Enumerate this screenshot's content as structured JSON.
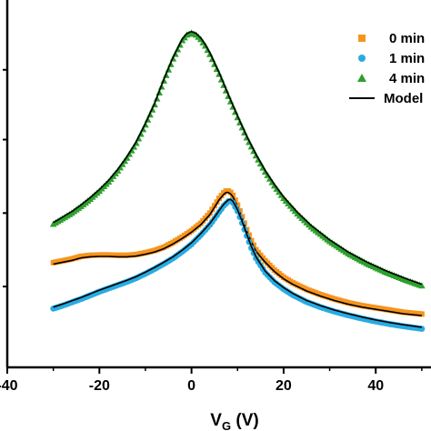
{
  "chart_data": {
    "type": "line",
    "xlabel_main": "V",
    "xlabel_sub": "G",
    "xlabel_unit": " (V)",
    "xlim": [
      -40,
      52
    ],
    "ylim": [
      0,
      1
    ],
    "x_ticks": [
      -40,
      -20,
      0,
      20,
      40
    ],
    "x_tick_labels": [
      "-40",
      "-20",
      "0",
      "20",
      "40"
    ],
    "y_tick_labels": [],
    "grid": false,
    "legend_position": "top-right",
    "series": [
      {
        "name": "0 min",
        "marker": "square",
        "color": "#f7941d",
        "x": [
          -30,
          -28,
          -26,
          -24,
          -22,
          -20,
          -18,
          -16,
          -14,
          -12,
          -10,
          -8,
          -6,
          -4,
          -2,
          0,
          2,
          4,
          5,
          6,
          7,
          7.5,
          8,
          8.5,
          9,
          10,
          11,
          12,
          13,
          14,
          16,
          18,
          20,
          22,
          25,
          28,
          31,
          34,
          37,
          40,
          43,
          46,
          50
        ],
        "y": [
          0.285,
          0.29,
          0.295,
          0.302,
          0.305,
          0.306,
          0.306,
          0.305,
          0.305,
          0.307,
          0.312,
          0.318,
          0.327,
          0.34,
          0.355,
          0.372,
          0.392,
          0.42,
          0.44,
          0.46,
          0.475,
          0.48,
          0.48,
          0.476,
          0.468,
          0.442,
          0.41,
          0.375,
          0.345,
          0.32,
          0.29,
          0.265,
          0.245,
          0.23,
          0.212,
          0.198,
          0.186,
          0.176,
          0.168,
          0.162,
          0.156,
          0.15,
          0.145
        ]
      },
      {
        "name": "1 min",
        "marker": "circle",
        "color": "#29abe2",
        "x": [
          -30,
          -28,
          -26,
          -24,
          -22,
          -20,
          -18,
          -16,
          -14,
          -12,
          -10,
          -8,
          -6,
          -4,
          -2,
          0,
          2,
          4,
          5,
          6,
          7,
          8,
          8.5,
          9,
          10,
          11,
          12,
          13,
          14,
          16,
          18,
          20,
          22,
          25,
          28,
          31,
          34,
          37,
          40,
          43,
          46,
          50
        ],
        "y": [
          0.16,
          0.168,
          0.177,
          0.186,
          0.196,
          0.206,
          0.215,
          0.224,
          0.233,
          0.243,
          0.255,
          0.268,
          0.282,
          0.297,
          0.315,
          0.335,
          0.36,
          0.388,
          0.405,
          0.423,
          0.44,
          0.452,
          0.453,
          0.448,
          0.425,
          0.393,
          0.358,
          0.325,
          0.297,
          0.258,
          0.232,
          0.213,
          0.197,
          0.178,
          0.164,
          0.152,
          0.142,
          0.133,
          0.125,
          0.118,
          0.112,
          0.105
        ]
      },
      {
        "name": "4 min",
        "marker": "triangle",
        "color": "#2ca02c",
        "x": [
          -30,
          -28,
          -26,
          -24,
          -22,
          -20,
          -18,
          -16,
          -14,
          -12,
          -10,
          -8,
          -6,
          -4,
          -2,
          -1,
          0,
          1,
          2,
          3,
          4,
          6,
          8,
          10,
          12,
          14,
          16,
          18,
          20,
          23,
          26,
          30,
          34,
          38,
          42,
          46,
          50
        ],
        "y": [
          0.39,
          0.405,
          0.42,
          0.438,
          0.458,
          0.48,
          0.505,
          0.535,
          0.57,
          0.61,
          0.66,
          0.715,
          0.78,
          0.84,
          0.89,
          0.905,
          0.91,
          0.905,
          0.893,
          0.875,
          0.852,
          0.798,
          0.738,
          0.68,
          0.625,
          0.576,
          0.532,
          0.494,
          0.46,
          0.418,
          0.382,
          0.343,
          0.31,
          0.283,
          0.26,
          0.24,
          0.222
        ]
      }
    ],
    "model": {
      "name": "Model",
      "color": "#000000"
    }
  },
  "legend": {
    "items": [
      {
        "label": "0 min",
        "symbol": "square",
        "color": "#f7941d"
      },
      {
        "label": "1 min",
        "symbol": "circle",
        "color": "#29abe2"
      },
      {
        "label": "4 min",
        "symbol": "triangle",
        "color": "#2ca02c"
      },
      {
        "label": "Model",
        "symbol": "line",
        "color": "#000000"
      }
    ]
  }
}
